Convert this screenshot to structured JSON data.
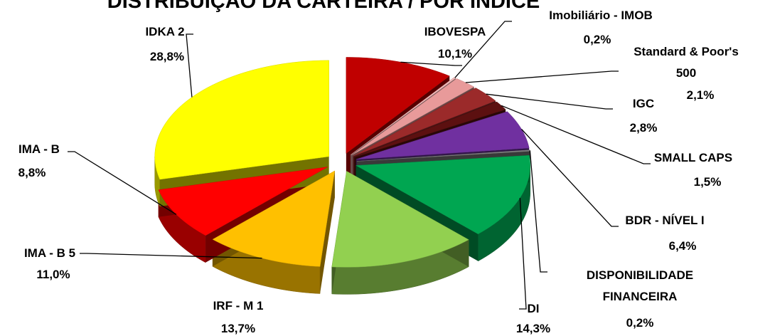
{
  "chart_data": {
    "type": "pie",
    "title": "DISTRIBUIÇÃO DA CARTEIRA / POR ÍNDICE",
    "categories": [
      "IBOVESPA",
      "Imobiliário - IMOB",
      "Standard & Poor's 500",
      "IGC",
      "SMALL CAPS",
      "BDR - NÍVEL I",
      "DISPONIBILIDADE FINANCEIRA",
      "DI",
      "IRF - M 1",
      "IMA - B 5",
      "IMA - B",
      "IDKA 2"
    ],
    "values": [
      10.1,
      0.2,
      2.1,
      2.8,
      1.5,
      6.4,
      0.2,
      14.3,
      13.7,
      11.0,
      8.8,
      28.8
    ],
    "value_labels": [
      "10,1%",
      "0,2%",
      "2,1%",
      "2,8%",
      "1,5%",
      "6,4%",
      "0,2%",
      "14,3%",
      "13,7%",
      "11,0%",
      "8,8%",
      "28,8%"
    ],
    "colors": [
      "#c00000",
      "#f2b8b8",
      "#e89a9a",
      "#9b2a2a",
      "#5c1010",
      "#7030a0",
      "#7f7f7f",
      "#00a651",
      "#92d050",
      "#ffc000",
      "#ff0000",
      "#ffff00"
    ]
  }
}
